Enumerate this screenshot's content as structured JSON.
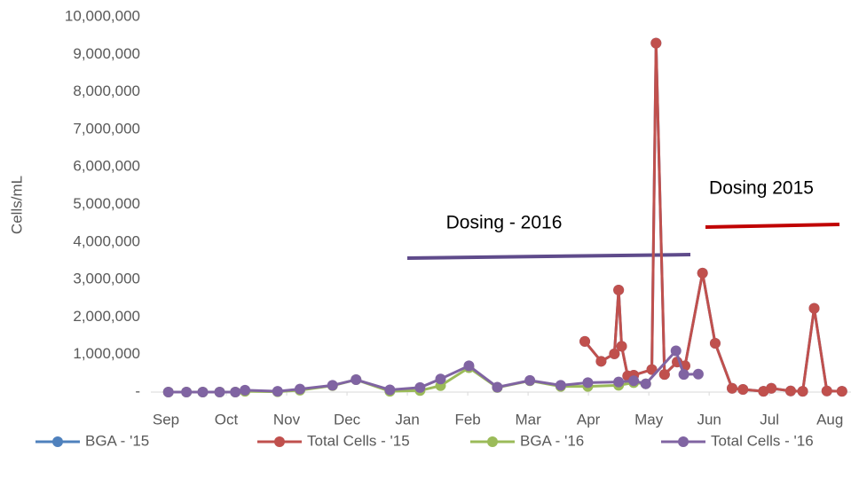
{
  "chart_data": {
    "type": "line",
    "y_label": "Cells/mL",
    "xlim": [
      -0.25,
      11.35
    ],
    "xticks": [
      {
        "value": 0,
        "label": "Sep"
      },
      {
        "value": 1,
        "label": "Oct"
      },
      {
        "value": 2,
        "label": "Nov"
      },
      {
        "value": 3,
        "label": "Dec"
      },
      {
        "value": 4,
        "label": "Jan"
      },
      {
        "value": 5,
        "label": "Feb"
      },
      {
        "value": 6,
        "label": "Mar"
      },
      {
        "value": 7,
        "label": "Apr"
      },
      {
        "value": 8,
        "label": "May"
      },
      {
        "value": 9,
        "label": "Jun"
      },
      {
        "value": 10,
        "label": "Jul"
      },
      {
        "value": 11,
        "label": "Aug"
      }
    ],
    "ylim": [
      0,
      10000000
    ],
    "yticks": [
      {
        "value": 0,
        "label": "-"
      },
      {
        "value": 1000000,
        "label": "1,000,000"
      },
      {
        "value": 2000000,
        "label": "2,000,000"
      },
      {
        "value": 3000000,
        "label": "3,000,000"
      },
      {
        "value": 4000000,
        "label": "4,000,000"
      },
      {
        "value": 5000000,
        "label": "5,000,000"
      },
      {
        "value": 6000000,
        "label": "6,000,000"
      },
      {
        "value": 7000000,
        "label": "7,000,000"
      },
      {
        "value": 8000000,
        "label": "8,000,000"
      },
      {
        "value": 9000000,
        "label": "9,000,000"
      },
      {
        "value": 10000000,
        "label": "10,000,000"
      }
    ],
    "annotations": [
      "Dosing - 2016",
      "Dosing 2015"
    ],
    "series": [
      {
        "name": "BGA - '15",
        "color": "#4f81bd",
        "x": [
          6.94,
          7.21,
          7.43,
          7.5,
          7.55,
          7.65,
          7.75,
          8.05,
          8.12,
          8.26,
          8.47,
          8.6,
          8.89,
          9.1,
          9.38,
          9.56,
          9.9,
          10.03,
          10.35,
          10.55,
          10.74,
          10.95,
          11.2
        ],
        "values": [
          1350000,
          820000,
          1020000,
          2720000,
          1220000,
          430000,
          450000,
          600000,
          9300000,
          470000,
          800000,
          700000,
          3170000,
          1300000,
          100000,
          70000,
          20000,
          100000,
          30000,
          20000,
          2230000,
          30000,
          20000
        ]
      },
      {
        "name": "Total Cells - '15",
        "color": "#c0504d",
        "x": [
          6.94,
          7.21,
          7.43,
          7.5,
          7.55,
          7.65,
          7.75,
          8.05,
          8.12,
          8.26,
          8.47,
          8.6,
          8.89,
          9.1,
          9.38,
          9.56,
          9.9,
          10.03,
          10.35,
          10.55,
          10.74,
          10.95,
          11.2
        ],
        "values": [
          1350000,
          820000,
          1020000,
          2720000,
          1220000,
          430000,
          450000,
          600000,
          9300000,
          470000,
          800000,
          700000,
          3170000,
          1300000,
          100000,
          70000,
          20000,
          100000,
          30000,
          20000,
          2230000,
          30000,
          20000
        ]
      },
      {
        "name": "BGA - '16",
        "color": "#9bbb59",
        "x": [
          0.04,
          0.34,
          0.61,
          0.89,
          1.15,
          1.31,
          1.85,
          2.22,
          2.76,
          3.15,
          3.71,
          4.21,
          4.55,
          5.02,
          5.49,
          6.03,
          6.54,
          6.99,
          7.5,
          7.75,
          7.95
        ],
        "values": [
          0,
          0,
          0,
          0,
          0,
          20000,
          10000,
          50000,
          170000,
          330000,
          20000,
          40000,
          170000,
          650000,
          120000,
          300000,
          150000,
          150000,
          180000,
          250000,
          220000
        ]
      },
      {
        "name": "Total Cells - '16",
        "color": "#8064a2",
        "x": [
          0.04,
          0.34,
          0.61,
          0.89,
          1.15,
          1.31,
          1.85,
          2.22,
          2.76,
          3.15,
          3.71,
          4.21,
          4.55,
          5.02,
          5.49,
          6.03,
          6.54,
          6.99,
          7.5,
          7.75,
          7.95,
          8.45,
          8.58,
          8.82
        ],
        "values": [
          0,
          0,
          0,
          0,
          0,
          50000,
          20000,
          80000,
          180000,
          330000,
          60000,
          120000,
          350000,
          700000,
          130000,
          310000,
          180000,
          250000,
          270000,
          300000,
          220000,
          1100000,
          470000,
          480000
        ]
      }
    ]
  }
}
